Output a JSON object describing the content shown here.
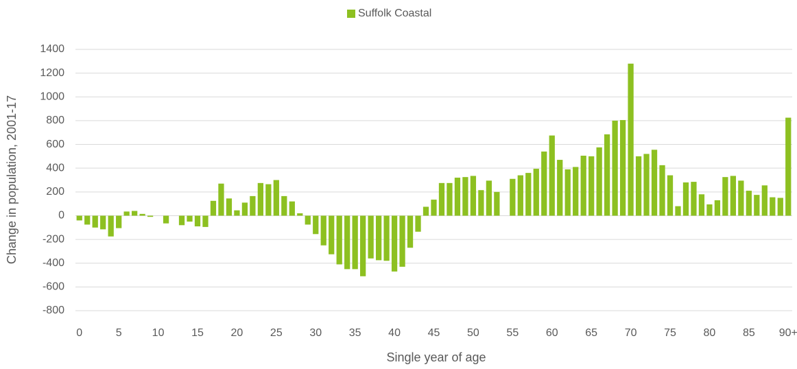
{
  "chart_data": {
    "type": "bar",
    "x_label": "Single year of age",
    "y_label": "Change in population, 2001-17",
    "categories": [
      "0",
      null,
      null,
      null,
      null,
      "5",
      null,
      null,
      null,
      null,
      "10",
      null,
      null,
      null,
      null,
      "15",
      null,
      null,
      null,
      null,
      "20",
      null,
      null,
      null,
      null,
      "25",
      null,
      null,
      null,
      null,
      "30",
      null,
      null,
      null,
      null,
      "35",
      null,
      null,
      null,
      null,
      "40",
      null,
      null,
      null,
      null,
      "45",
      null,
      null,
      null,
      null,
      "50",
      null,
      null,
      null,
      null,
      "55",
      null,
      null,
      null,
      null,
      "60",
      null,
      null,
      null,
      null,
      "65",
      null,
      null,
      null,
      null,
      "70",
      null,
      null,
      null,
      null,
      "75",
      null,
      null,
      null,
      null,
      "80",
      null,
      null,
      null,
      null,
      "85",
      null,
      null,
      null,
      null,
      "90+"
    ],
    "series": [
      {
        "name": "Suffolk Coastal",
        "color": "#8dc021",
        "values": [
          -40,
          -75,
          -100,
          -115,
          -175,
          -105,
          35,
          40,
          15,
          -10,
          0,
          -65,
          0,
          -80,
          -50,
          -90,
          -95,
          125,
          270,
          145,
          45,
          110,
          165,
          275,
          265,
          300,
          165,
          120,
          20,
          -75,
          -155,
          -250,
          -325,
          -410,
          -450,
          -450,
          -510,
          -360,
          -375,
          -380,
          -470,
          -430,
          -270,
          -135,
          75,
          135,
          275,
          275,
          320,
          325,
          335,
          215,
          295,
          200,
          0,
          310,
          340,
          360,
          395,
          540,
          675,
          470,
          390,
          410,
          505,
          500,
          575,
          685,
          800,
          805,
          1280,
          500,
          520,
          555,
          425,
          340,
          80,
          280,
          285,
          180,
          95,
          130,
          325,
          335,
          295,
          210,
          175,
          255,
          155,
          150,
          825
        ]
      }
    ],
    "ylim": [
      -800,
      1400
    ],
    "yticks": [
      -800,
      -600,
      -400,
      -200,
      0,
      200,
      400,
      600,
      800,
      1000,
      1200,
      1400
    ],
    "grid": true,
    "legend": "top"
  }
}
